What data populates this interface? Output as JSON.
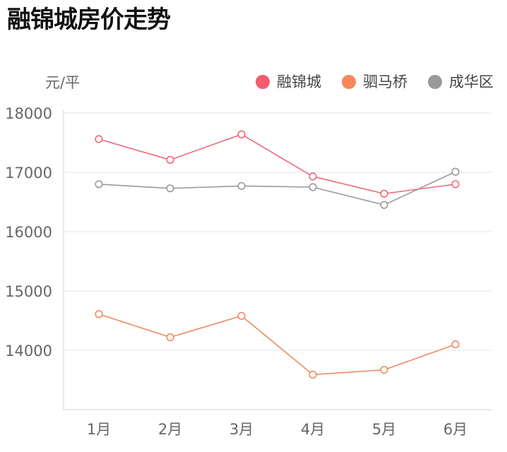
{
  "page": {
    "title": "融锦城房价走势"
  },
  "chart_data": {
    "type": "line",
    "title": "融锦城房价走势",
    "ylabel": "元/平",
    "xlabel": "",
    "categories": [
      "1月",
      "2月",
      "3月",
      "4月",
      "5月",
      "6月"
    ],
    "ylim": [
      13000,
      18000
    ],
    "yticks": [
      14000,
      15000,
      16000,
      17000,
      18000
    ],
    "grid": true,
    "legend_position": "top-right",
    "series": [
      {
        "name": "融锦城",
        "color": "#ee6677",
        "values": [
          17560,
          17210,
          17640,
          16930,
          16640,
          16800
        ]
      },
      {
        "name": "驷马桥",
        "color": "#f08a5d",
        "values": [
          14610,
          14220,
          14580,
          13590,
          13670,
          14100
        ]
      },
      {
        "name": "成华区",
        "color": "#999999",
        "values": [
          16800,
          16730,
          16770,
          16750,
          16450,
          17010
        ]
      }
    ],
    "legend_marker_colors": [
      "#f45b6c",
      "#f7895a",
      "#9a9a9a"
    ]
  }
}
